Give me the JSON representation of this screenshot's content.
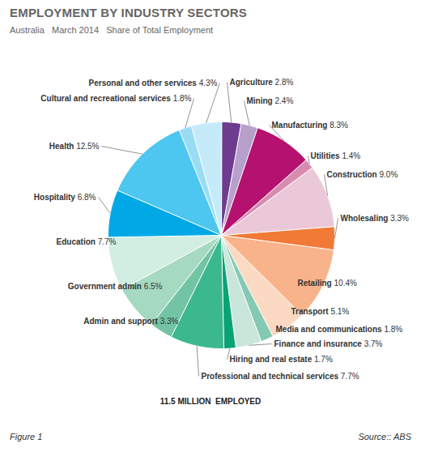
{
  "chart_data": {
    "type": "pie",
    "title": "EMPLOYMENT BY INDUSTRY SECTORS",
    "subtitle": "Australia   March 2014   Share of Total Employment",
    "categories": [
      "Agriculture",
      "Mining",
      "Manufacturing",
      "Utilities",
      "Construction",
      "Wholesaling",
      "Retailing",
      "Transport",
      "Media and communications",
      "Finance and insurance",
      "Hiring and real estate",
      "Professional and technical services",
      "Admin and support",
      "Government admin",
      "Education",
      "Hospitality",
      "Health",
      "Cultural and recreational services",
      "Personal and other services"
    ],
    "values": [
      2.8,
      2.4,
      8.3,
      1.4,
      9.0,
      3.3,
      10.4,
      5.1,
      1.8,
      3.7,
      1.7,
      7.7,
      3.3,
      6.5,
      7.7,
      6.8,
      12.5,
      1.8,
      4.3
    ],
    "value_labels": [
      "2.8%",
      "2.4%",
      "8.3%",
      "1.4%",
      "9.0%",
      "3.3%",
      "10.4%",
      "5.1%",
      "1.8%",
      "3.7%",
      "1.7%",
      "7.7%",
      "3.3%",
      "6.5%",
      "7.7%",
      "6.8%",
      "12.5%",
      "1.8%",
      "4.3%"
    ],
    "colors": [
      "#6e3b8f",
      "#b7a0cc",
      "#b5116e",
      "#d98ab0",
      "#ebc8d8",
      "#f07a36",
      "#f9b38a",
      "#fcd9c2",
      "#86c9b3",
      "#c9e6db",
      "#0aa376",
      "#3cb88f",
      "#73c4a4",
      "#a5d9c2",
      "#d2ede2",
      "#00a9e6",
      "#4dc6f0",
      "#9adcf5",
      "#c5ebfa"
    ],
    "data_labels": true,
    "total_label": "11.5 MILLION  EMPLOYED",
    "figure": "Figure 1",
    "source": "Source:: ABS"
  }
}
